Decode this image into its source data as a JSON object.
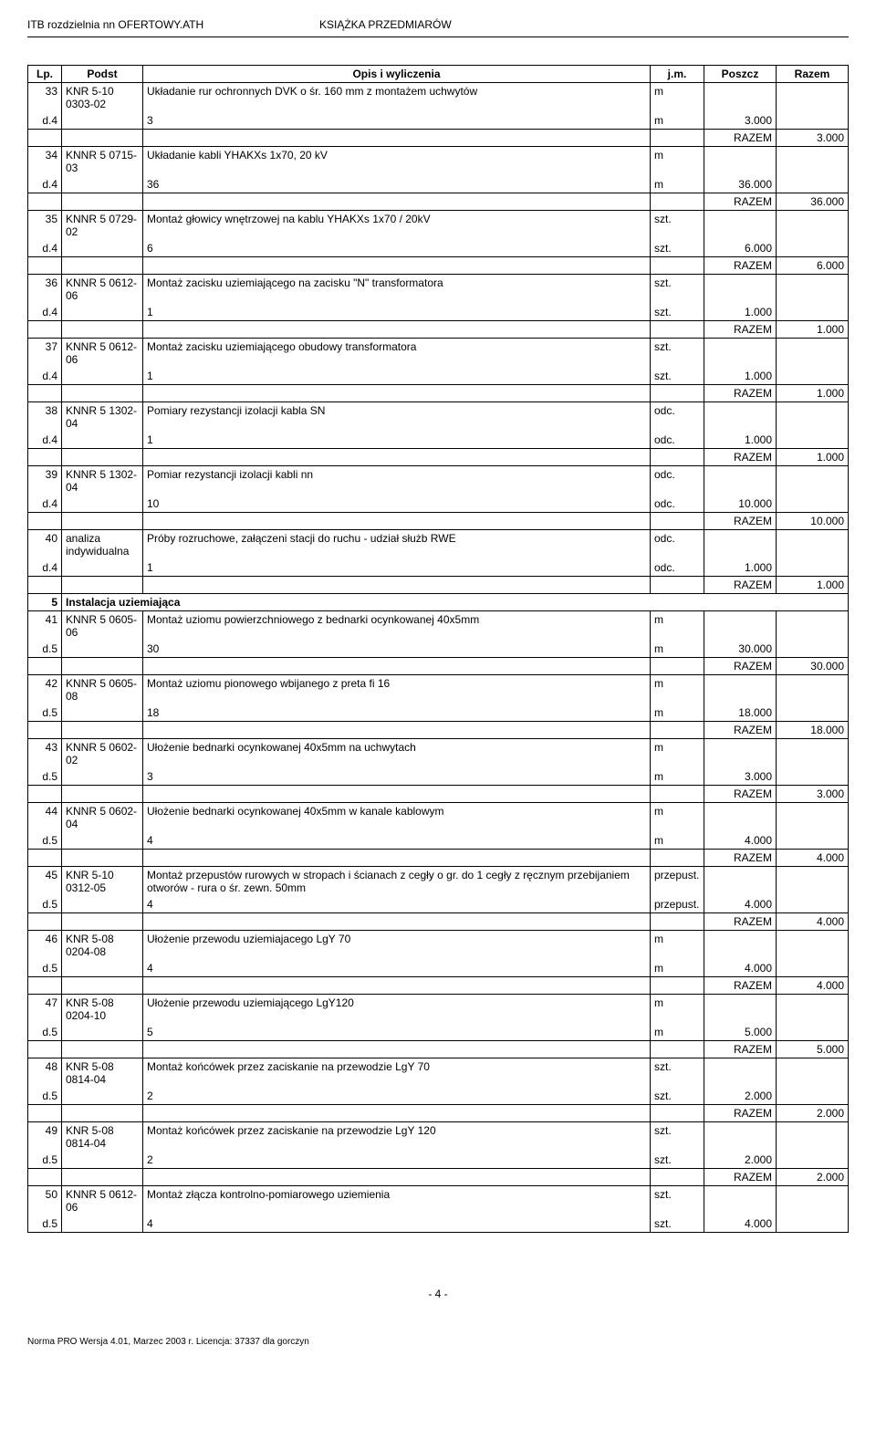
{
  "header": {
    "left": "ITB rozdzielnia nn OFERTOWY.ATH",
    "right": "KSIĄŻKA PRZEDMIARÓW"
  },
  "columns": {
    "lp": "Lp.",
    "podst": "Podst",
    "opis": "Opis i wyliczenia",
    "jm": "j.m.",
    "poszcz": "Poszcz",
    "razem": "Razem"
  },
  "razem_label": "RAZEM",
  "rows": [
    {
      "lp": "33",
      "lp2": "d.4",
      "podst": "KNR 5-10 0303-02",
      "opis": "Układanie rur ochronnych DVK o śr. 160 mm z montażem uchwytów",
      "jm": "m",
      "calc": "3",
      "calc_jm": "m",
      "poszcz": "3.000",
      "razem": "3.000"
    },
    {
      "lp": "34",
      "lp2": "d.4",
      "podst": "KNNR 5 0715-03",
      "opis": "Układanie kabli YHAKXs 1x70, 20 kV",
      "jm": "m",
      "calc": "36",
      "calc_jm": "m",
      "poszcz": "36.000",
      "razem": "36.000"
    },
    {
      "lp": "35",
      "lp2": "d.4",
      "podst": "KNNR 5 0729-02",
      "opis": "Montaż głowicy wnętrzowej na kablu YHAKXs 1x70 / 20kV",
      "jm": "szt.",
      "calc": "6",
      "calc_jm": "szt.",
      "poszcz": "6.000",
      "razem": "6.000"
    },
    {
      "lp": "36",
      "lp2": "d.4",
      "podst": "KNNR 5 0612-06",
      "opis": "Montaż zacisku uziemiającego na zacisku \"N\" transformatora",
      "jm": "szt.",
      "calc": "1",
      "calc_jm": "szt.",
      "poszcz": "1.000",
      "razem": "1.000"
    },
    {
      "lp": "37",
      "lp2": "d.4",
      "podst": "KNNR 5 0612-06",
      "opis": "Montaż zacisku uziemiającego obudowy transformatora",
      "jm": "szt.",
      "calc": "1",
      "calc_jm": "szt.",
      "poszcz": "1.000",
      "razem": "1.000"
    },
    {
      "lp": "38",
      "lp2": "d.4",
      "podst": "KNNR 5 1302-04",
      "opis": "Pomiary rezystancji izolacji kabla SN",
      "jm": "odc.",
      "calc": "1",
      "calc_jm": "odc.",
      "poszcz": "1.000",
      "razem": "1.000"
    },
    {
      "lp": "39",
      "lp2": "d.4",
      "podst": "KNNR 5 1302-04",
      "opis": "Pomiar rezystancji izolacji kabli nn",
      "jm": "odc.",
      "calc": "10",
      "calc_jm": "odc.",
      "poszcz": "10.000",
      "razem": "10.000"
    },
    {
      "lp": "40",
      "lp2": "d.4",
      "podst": "analiza indywidualna",
      "opis": "Próby rozruchowe, załączeni stacji do ruchu - udział służb RWE",
      "jm": "odc.",
      "calc": "1",
      "calc_jm": "odc.",
      "poszcz": "1.000",
      "razem": "1.000"
    }
  ],
  "section5": {
    "lp": "5",
    "title": "Instalacja uziemiająca"
  },
  "rows2": [
    {
      "lp": "41",
      "lp2": "d.5",
      "podst": "KNNR 5 0605-06",
      "opis": "Montaż uziomu powierzchniowego z bednarki ocynkowanej 40x5mm",
      "jm": "m",
      "calc": "30",
      "calc_jm": "m",
      "poszcz": "30.000",
      "razem": "30.000"
    },
    {
      "lp": "42",
      "lp2": "d.5",
      "podst": "KNNR 5 0605-08",
      "opis": "Montaż uziomu pionowego wbijanego z preta fi 16",
      "jm": "m",
      "calc": "18",
      "calc_jm": "m",
      "poszcz": "18.000",
      "razem": "18.000"
    },
    {
      "lp": "43",
      "lp2": "d.5",
      "podst": "KNNR 5 0602-02",
      "opis": "Ułożenie bednarki ocynkowanej 40x5mm na uchwytach",
      "jm": "m",
      "calc": "3",
      "calc_jm": "m",
      "poszcz": "3.000",
      "razem": "3.000"
    },
    {
      "lp": "44",
      "lp2": "d.5",
      "podst": "KNNR 5 0602-04",
      "opis": "Ułożenie bednarki ocynkowanej 40x5mm w kanale kablowym",
      "jm": "m",
      "calc": "4",
      "calc_jm": "m",
      "poszcz": "4.000",
      "razem": "4.000"
    },
    {
      "lp": "45",
      "lp2": "d.5",
      "podst": "KNR 5-10 0312-05",
      "opis": "Montaż przepustów rurowych w stropach i ścianach z cegły o gr. do 1 cegły z ręcznym przebijaniem otworów - rura o śr. zewn. 50mm",
      "jm": "przepust.",
      "calc": "4",
      "calc_jm": "przepust.",
      "poszcz": "4.000",
      "razem": "4.000"
    },
    {
      "lp": "46",
      "lp2": "d.5",
      "podst": "KNR 5-08 0204-08",
      "opis": "Ułożenie przewodu uziemiajacego LgY 70",
      "jm": "m",
      "calc": "4",
      "calc_jm": "m",
      "poszcz": "4.000",
      "razem": "4.000"
    },
    {
      "lp": "47",
      "lp2": "d.5",
      "podst": "KNR 5-08 0204-10",
      "opis": "Ułożenie przewodu uziemiającego LgY120",
      "jm": "m",
      "calc": "5",
      "calc_jm": "m",
      "poszcz": "5.000",
      "razem": "5.000"
    },
    {
      "lp": "48",
      "lp2": "d.5",
      "podst": "KNR 5-08 0814-04",
      "opis": "Montaż końcówek przez zaciskanie na przewodzie LgY 70",
      "jm": "szt.",
      "calc": "2",
      "calc_jm": "szt.",
      "poszcz": "2.000",
      "razem": "2.000"
    },
    {
      "lp": "49",
      "lp2": "d.5",
      "podst": "KNR 5-08 0814-04",
      "opis": "Montaż końcówek przez zaciskanie na przewodzie LgY 120",
      "jm": "szt.",
      "calc": "2",
      "calc_jm": "szt.",
      "poszcz": "2.000",
      "razem": "2.000"
    },
    {
      "lp": "50",
      "lp2": "d.5",
      "podst": "KNNR 5 0612-06",
      "opis": "Montaż złącza kontrolno-pomiarowego uziemienia",
      "jm": "szt.",
      "calc": "4",
      "calc_jm": "szt.",
      "poszcz": "4.000",
      "razem": ""
    }
  ],
  "footer": {
    "page": "- 4 -",
    "license": "Norma PRO Wersja 4.01, Marzec 2003 r. Licencja: 37337 dla gorczyn"
  }
}
